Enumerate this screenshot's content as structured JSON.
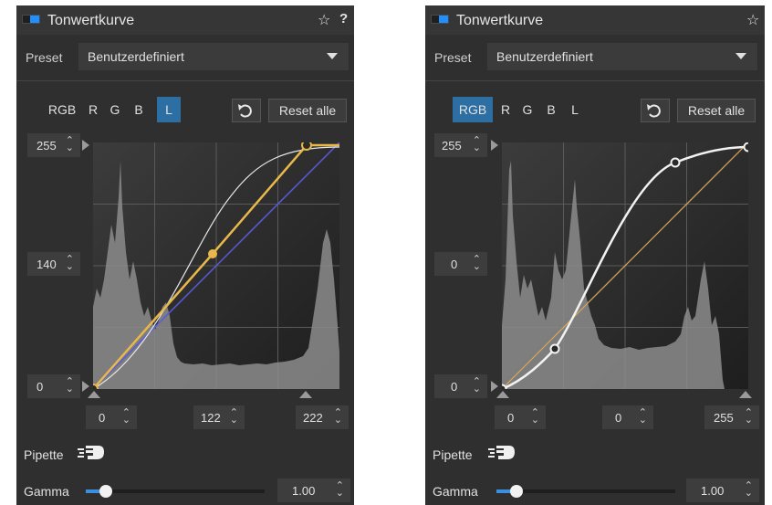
{
  "colors": {
    "panel_bg": "#2f2f2f",
    "accent": "#2d6fa3",
    "toggle_blue": "#1e90ff",
    "luminance_curve": "#e8b84a",
    "diagonal": "#5a5ae0"
  },
  "left": {
    "header": {
      "title": "Tonwertkurve",
      "star_icon": "☆",
      "help_icon": "?"
    },
    "preset": {
      "label": "Preset",
      "value": "Benutzerdefiniert"
    },
    "channels": [
      {
        "label": "RGB",
        "active": false
      },
      {
        "label": "R",
        "active": false
      },
      {
        "label": "G",
        "active": false
      },
      {
        "label": "B",
        "active": false
      },
      {
        "label": "L",
        "active": true
      }
    ],
    "reset_label": "Reset alle",
    "y_values": {
      "top": "255",
      "mid": "140",
      "bottom": "0"
    },
    "x_values": {
      "left": "0",
      "mid": "122",
      "right": "222"
    },
    "pipette_label": "Pipette",
    "gamma": {
      "label": "Gamma",
      "value": "1.00",
      "slider_level": 0.11
    },
    "curve_points": [
      [
        0,
        0
      ],
      [
        122,
        140
      ],
      [
        222,
        255
      ]
    ]
  },
  "right": {
    "header": {
      "title": "Tonwertkurve",
      "star_icon": "☆"
    },
    "preset": {
      "label": "Preset",
      "value": "Benutzerdefiniert"
    },
    "channels": [
      {
        "label": "RGB",
        "active": true
      },
      {
        "label": "R",
        "active": false
      },
      {
        "label": "G",
        "active": false
      },
      {
        "label": "B",
        "active": false
      },
      {
        "label": "L",
        "active": false
      }
    ],
    "reset_label": "Reset alle",
    "y_values": {
      "top": "255",
      "mid": "0",
      "bottom": "0"
    },
    "x_values": {
      "left": "0",
      "mid": "0",
      "right": "255"
    },
    "pipette_label": "Pipette",
    "gamma": {
      "label": "Gamma",
      "value": "1.00",
      "slider_level": 0.11
    },
    "curve_points": [
      [
        0,
        0
      ],
      [
        55,
        45
      ],
      [
        200,
        230
      ],
      [
        255,
        255
      ]
    ]
  }
}
